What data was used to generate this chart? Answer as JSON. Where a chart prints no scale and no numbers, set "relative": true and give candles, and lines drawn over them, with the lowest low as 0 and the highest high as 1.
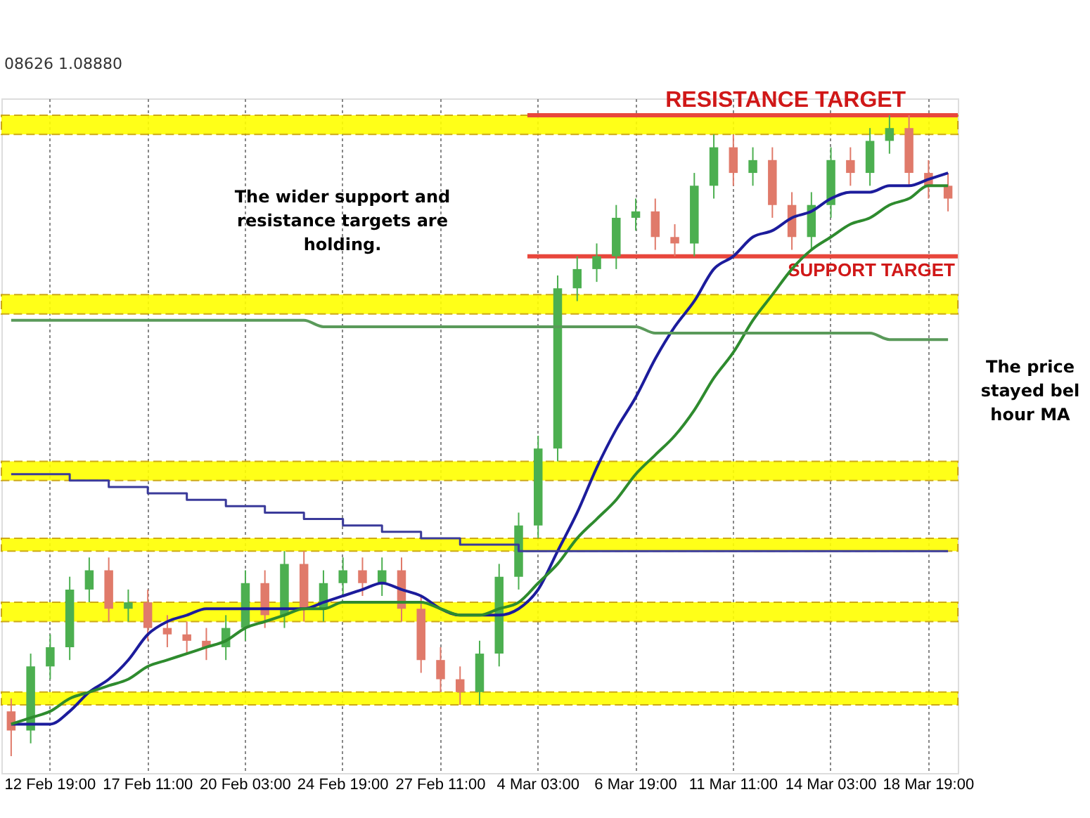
{
  "chart_data": {
    "type": "candlestick",
    "relative": true,
    "categories": [
      null,
      null,
      "12 Feb 19:00",
      null,
      null,
      null,
      null,
      "17 Feb 11:00",
      null,
      null,
      null,
      null,
      "20 Feb 03:00",
      null,
      null,
      null,
      null,
      "24 Feb 19:00",
      null,
      null,
      null,
      null,
      "27 Feb 11:00",
      null,
      null,
      null,
      null,
      "4 Mar 03:00",
      null,
      null,
      null,
      null,
      "6 Mar 19:00",
      null,
      null,
      null,
      null,
      "11 Mar 11:00",
      null,
      null,
      null,
      null,
      "14 Mar 03:00",
      null,
      null,
      null,
      null,
      "18 Mar 19:00",
      null
    ],
    "ohlc": [
      [
        0.07,
        0.09,
        0,
        0.04
      ],
      [
        0.04,
        0.16,
        0.02,
        0.14
      ],
      [
        0.14,
        0.19,
        0.12,
        0.17
      ],
      [
        0.17,
        0.28,
        0.15,
        0.26
      ],
      [
        0.26,
        0.31,
        0.24,
        0.29
      ],
      [
        0.29,
        0.31,
        0.21,
        0.23
      ],
      [
        0.23,
        0.26,
        0.21,
        0.24
      ],
      [
        0.24,
        0.26,
        0.18,
        0.2
      ],
      [
        0.2,
        0.22,
        0.17,
        0.19
      ],
      [
        0.19,
        0.21,
        0.16,
        0.18
      ],
      [
        0.18,
        0.2,
        0.15,
        0.17
      ],
      [
        0.17,
        0.22,
        0.15,
        0.2
      ],
      [
        0.2,
        0.29,
        0.18,
        0.27
      ],
      [
        0.27,
        0.29,
        0.2,
        0.22
      ],
      [
        0.22,
        0.32,
        0.2,
        0.3
      ],
      [
        0.3,
        0.32,
        0.21,
        0.23
      ],
      [
        0.23,
        0.29,
        0.21,
        0.27
      ],
      [
        0.27,
        0.31,
        0.25,
        0.29
      ],
      [
        0.29,
        0.31,
        0.25,
        0.27
      ],
      [
        0.27,
        0.31,
        0.25,
        0.29
      ],
      [
        0.29,
        0.31,
        0.21,
        0.23
      ],
      [
        0.23,
        0.25,
        0.13,
        0.15
      ],
      [
        0.15,
        0.17,
        0.1,
        0.12
      ],
      [
        0.12,
        0.14,
        0.08,
        0.1
      ],
      [
        0.1,
        0.18,
        0.08,
        0.16
      ],
      [
        0.16,
        0.3,
        0.14,
        0.28
      ],
      [
        0.28,
        0.38,
        0.26,
        0.36
      ],
      [
        0.36,
        0.5,
        0.34,
        0.48
      ],
      [
        0.48,
        0.75,
        0.46,
        0.73
      ],
      [
        0.73,
        0.78,
        0.71,
        0.76
      ],
      [
        0.76,
        0.8,
        0.74,
        0.78
      ],
      [
        0.78,
        0.86,
        0.76,
        0.84
      ],
      [
        0.84,
        0.87,
        0.82,
        0.85
      ],
      [
        0.85,
        0.87,
        0.79,
        0.81
      ],
      [
        0.81,
        0.83,
        0.78,
        0.8
      ],
      [
        0.8,
        0.91,
        0.78,
        0.89
      ],
      [
        0.89,
        0.97,
        0.87,
        0.95
      ],
      [
        0.95,
        0.97,
        0.89,
        0.91
      ],
      [
        0.91,
        0.95,
        0.89,
        0.93
      ],
      [
        0.93,
        0.95,
        0.84,
        0.86
      ],
      [
        0.86,
        0.88,
        0.79,
        0.81
      ],
      [
        0.81,
        0.88,
        0.79,
        0.86
      ],
      [
        0.86,
        0.95,
        0.84,
        0.93
      ],
      [
        0.93,
        0.95,
        0.89,
        0.91
      ],
      [
        0.91,
        0.98,
        0.89,
        0.96
      ],
      [
        0.96,
        1.0,
        0.94,
        0.98
      ],
      [
        0.98,
        1.0,
        0.89,
        0.91
      ],
      [
        0.91,
        0.93,
        0.87,
        0.89
      ],
      [
        0.89,
        0.91,
        0.85,
        0.87
      ]
    ],
    "colors": [
      "#e07a6a",
      "#4caf50",
      "#4caf50",
      "#4caf50",
      "#4caf50",
      "#e07a6a",
      "#4caf50",
      "#e07a6a",
      "#e07a6a",
      "#e07a6a",
      "#e07a6a",
      "#4caf50",
      "#4caf50",
      "#e07a6a",
      "#4caf50",
      "#e07a6a",
      "#4caf50",
      "#4caf50",
      "#e07a6a",
      "#4caf50",
      "#e07a6a",
      "#e07a6a",
      "#e07a6a",
      "#e07a6a",
      "#4caf50",
      "#4caf50",
      "#4caf50",
      "#4caf50",
      "#4caf50",
      "#4caf50",
      "#4caf50",
      "#4caf50",
      "#4caf50",
      "#e07a6a",
      "#e07a6a",
      "#4caf50",
      "#4caf50",
      "#e07a6a",
      "#4caf50",
      "#e07a6a",
      "#e07a6a",
      "#4caf50",
      "#4caf50",
      "#e07a6a",
      "#4caf50",
      "#4caf50",
      "#e07a6a",
      "#e07a6a",
      "#e07a6a"
    ],
    "series": [
      {
        "type": "line",
        "color": "#1c1c9c",
        "values": [
          0.05,
          0.05,
          0.05,
          0.07,
          0.1,
          0.12,
          0.15,
          0.19,
          0.21,
          0.22,
          0.23,
          0.23,
          0.23,
          0.23,
          0.23,
          0.23,
          0.24,
          0.25,
          0.26,
          0.27,
          0.26,
          0.25,
          0.23,
          0.22,
          0.22,
          0.22,
          0.23,
          0.26,
          0.32,
          0.38,
          0.45,
          0.51,
          0.56,
          0.62,
          0.67,
          0.71,
          0.76,
          0.78,
          0.81,
          0.82,
          0.84,
          0.85,
          0.87,
          0.88,
          0.88,
          0.89,
          0.89,
          0.9,
          0.91
        ]
      },
      {
        "type": "line",
        "color": "#2e8b2e",
        "values": [
          0.05,
          0.06,
          0.07,
          0.09,
          0.1,
          0.11,
          0.12,
          0.14,
          0.15,
          0.16,
          0.17,
          0.18,
          0.2,
          0.21,
          0.22,
          0.23,
          0.23,
          0.24,
          0.24,
          0.24,
          0.24,
          0.24,
          0.23,
          0.22,
          0.22,
          0.23,
          0.24,
          0.27,
          0.3,
          0.34,
          0.37,
          0.4,
          0.44,
          0.47,
          0.5,
          0.54,
          0.59,
          0.63,
          0.68,
          0.72,
          0.76,
          0.79,
          0.81,
          0.83,
          0.84,
          0.86,
          0.87,
          0.89,
          0.89
        ]
      },
      {
        "type": "step",
        "color": "#3a3a9a",
        "values": [
          0.44,
          0.44,
          0.44,
          0.43,
          0.43,
          0.42,
          0.42,
          0.41,
          0.41,
          0.4,
          0.4,
          0.39,
          0.39,
          0.38,
          0.38,
          0.37,
          0.37,
          0.36,
          0.36,
          0.35,
          0.35,
          0.34,
          0.34,
          0.33,
          0.33,
          0.33,
          0.32,
          0.32,
          0.32,
          0.32,
          0.32,
          0.32,
          0.32,
          0.32,
          0.32,
          0.32,
          0.32,
          0.32,
          0.32,
          0.32,
          0.32,
          0.32,
          0.32,
          0.32,
          0.32,
          0.32,
          0.32,
          0.32,
          0.32
        ]
      },
      {
        "type": "line",
        "color": "#5a9a5a",
        "values": [
          0.68,
          0.68,
          0.68,
          0.68,
          0.68,
          0.68,
          0.68,
          0.68,
          0.68,
          0.68,
          0.68,
          0.68,
          0.68,
          0.68,
          0.68,
          0.68,
          0.67,
          0.67,
          0.67,
          0.67,
          0.67,
          0.67,
          0.67,
          0.67,
          0.67,
          0.67,
          0.67,
          0.67,
          0.67,
          0.67,
          0.67,
          0.67,
          0.67,
          0.66,
          0.66,
          0.66,
          0.66,
          0.66,
          0.66,
          0.66,
          0.66,
          0.66,
          0.66,
          0.66,
          0.66,
          0.65,
          0.65,
          0.65,
          0.65
        ]
      }
    ],
    "ref_lines": [
      {
        "axis": "y",
        "value": 1.0,
        "label": "RESISTANCE TARGET",
        "color": "#e8473c"
      },
      {
        "axis": "y",
        "value": 0.78,
        "label": "SUPPORT TARGET",
        "color": "#e8473c"
      }
    ],
    "bands": [
      {
        "axis": "y",
        "from": 0.97,
        "to": 1.0,
        "color": "#ffff00"
      },
      {
        "axis": "y",
        "from": 0.69,
        "to": 0.72,
        "color": "#ffff00"
      },
      {
        "axis": "y",
        "from": 0.43,
        "to": 0.46,
        "color": "#ffff00"
      },
      {
        "axis": "y",
        "from": 0.32,
        "to": 0.34,
        "color": "#ffff00"
      },
      {
        "axis": "y",
        "from": 0.21,
        "to": 0.24,
        "color": "#ffff00"
      },
      {
        "axis": "y",
        "from": 0.08,
        "to": 0.1,
        "color": "#ffff00"
      }
    ],
    "annotations": [
      "08626 1.08880",
      "The wider support and\nresistance targets are\nholding.",
      "The price\nstayed bel\nhour MA"
    ],
    "grid": "x"
  }
}
